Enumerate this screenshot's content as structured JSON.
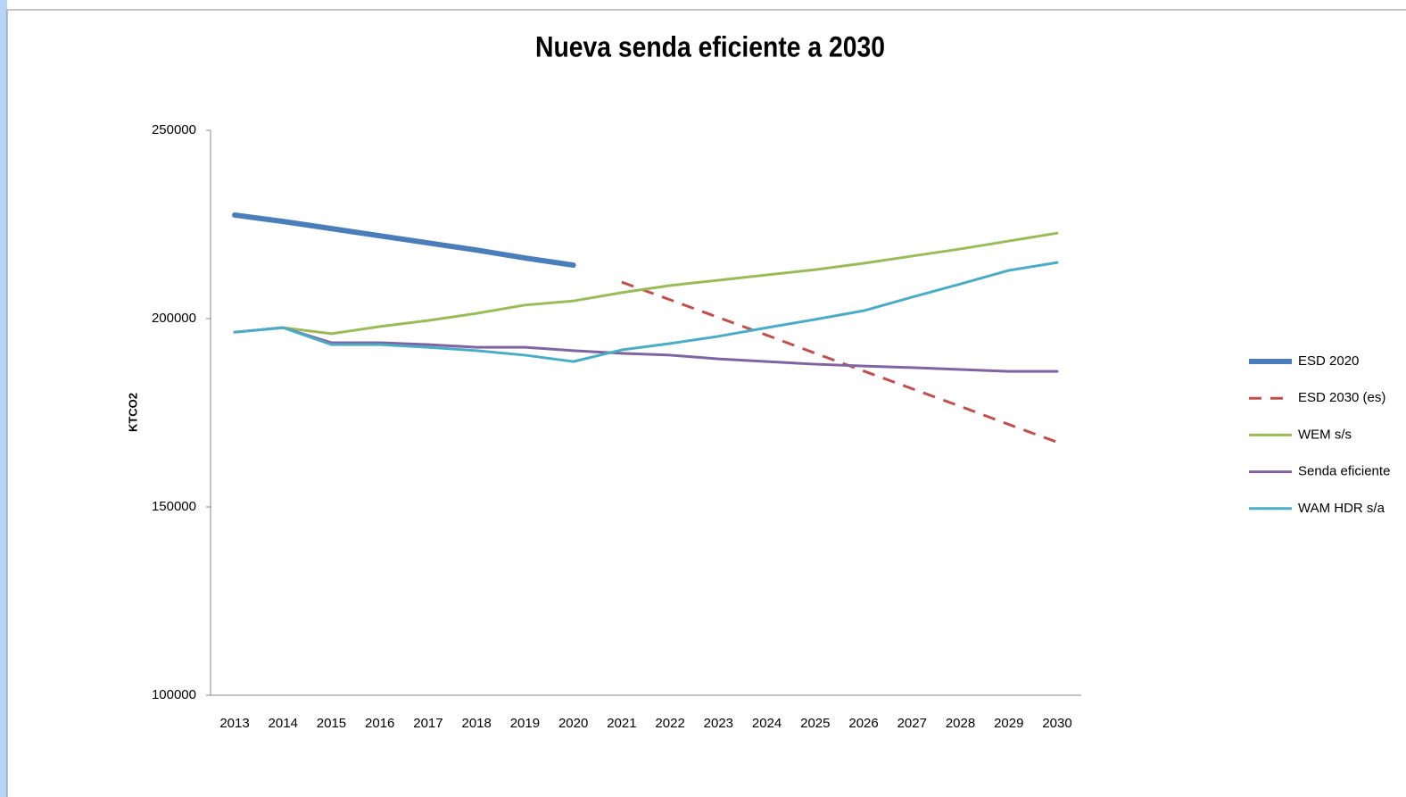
{
  "chart_data": {
    "type": "line",
    "title": "Nueva senda eficiente a 2030",
    "y_label": "KTCO2",
    "categories": [
      "2013",
      "2014",
      "2015",
      "2016",
      "2017",
      "2018",
      "2019",
      "2020",
      "2021",
      "2022",
      "2023",
      "2024",
      "2025",
      "2026",
      "2027",
      "2028",
      "2029",
      "2030"
    ],
    "ylim": [
      100000,
      250000
    ],
    "yticks": [
      100000,
      150000,
      200000,
      250000
    ],
    "grid": false,
    "legend": "right",
    "series": [
      {
        "name": "ESD 2020",
        "color": "#4a7ebb",
        "width": 6,
        "dashed": false,
        "values": [
          227500,
          225800,
          223900,
          222000,
          220100,
          218200,
          216100,
          214200,
          null,
          null,
          null,
          null,
          null,
          null,
          null,
          null,
          null,
          null
        ]
      },
      {
        "name": "ESD 2030 (es)",
        "color": "#c0504d",
        "width": 3,
        "dashed": true,
        "values": [
          null,
          null,
          null,
          null,
          null,
          null,
          null,
          null,
          209700,
          205000,
          200300,
          195600,
          190800,
          186100,
          181400,
          176700,
          171900,
          167200
        ]
      },
      {
        "name": "WEM s/s",
        "color": "#9bbb59",
        "width": 3,
        "dashed": false,
        "values": [
          196400,
          197600,
          196000,
          197900,
          199500,
          201400,
          203600,
          204700,
          206900,
          208800,
          210200,
          211600,
          213000,
          214700,
          216600,
          218500,
          220600,
          222700
        ]
      },
      {
        "name": "Senda eficiente",
        "color": "#8064a2",
        "width": 3,
        "dashed": false,
        "values": [
          196400,
          197600,
          193600,
          193600,
          193100,
          192400,
          192400,
          191500,
          190800,
          190300,
          189300,
          188600,
          187900,
          187400,
          187000,
          186500,
          186000,
          186000
        ]
      },
      {
        "name": "WAM HDR s/a",
        "color": "#4bacc6",
        "width": 3,
        "dashed": false,
        "values": [
          196400,
          197600,
          193100,
          193100,
          192400,
          191500,
          190300,
          188600,
          191700,
          193400,
          195300,
          197600,
          199800,
          202100,
          205700,
          209200,
          212800,
          214900
        ]
      }
    ]
  }
}
